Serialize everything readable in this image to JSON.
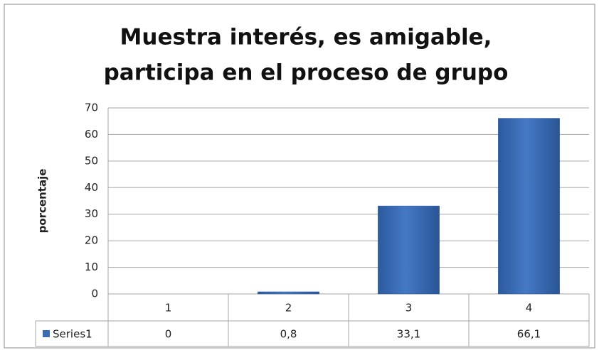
{
  "chart_data": {
    "type": "bar",
    "title": [
      "Muestra interés, es amigable,",
      "participa en el proceso de grupo"
    ],
    "ylabel": "porcentaje",
    "categories": [
      "1",
      "2",
      "3",
      "4"
    ],
    "series": [
      {
        "name": "Series1",
        "color": "#3a6cb4",
        "values": [
          0,
          0.8,
          33.1,
          66.1
        ],
        "value_labels": [
          "0",
          "0,8",
          "33,1",
          "66,1"
        ]
      }
    ],
    "ylim": [
      0,
      70
    ],
    "yticks": [
      0,
      10,
      20,
      30,
      40,
      50,
      60,
      70
    ],
    "grid": true,
    "legend": "table"
  }
}
